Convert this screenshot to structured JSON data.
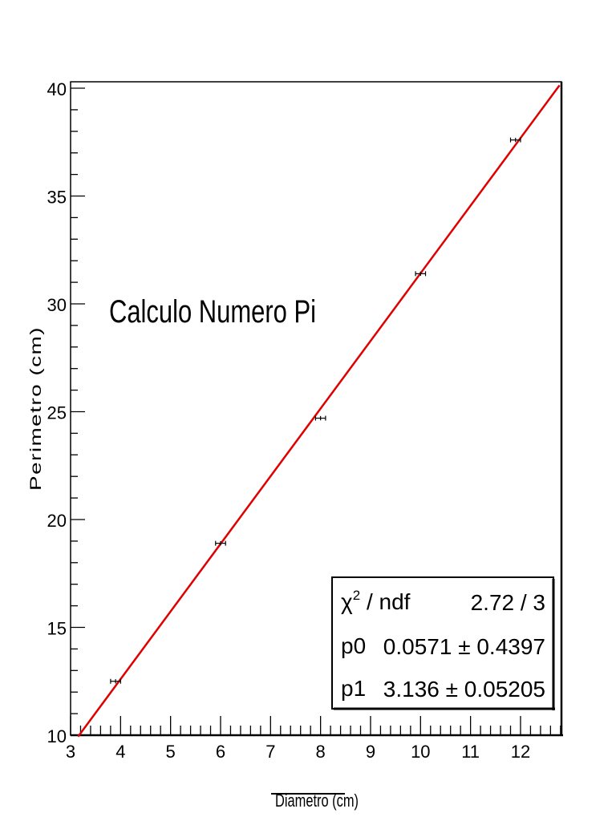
{
  "chart_data": {
    "type": "scatter",
    "title": "Calculo Numero Pi",
    "xlabel": "Diametro (cm)",
    "ylabel": "Perimetro  (cm)",
    "xlim": [
      3,
      12.8
    ],
    "ylim": [
      10,
      40
    ],
    "x_ticks": [
      3,
      4,
      5,
      6,
      7,
      8,
      9,
      10,
      11,
      12
    ],
    "y_ticks": [
      10,
      15,
      20,
      25,
      30,
      35,
      40
    ],
    "grid": false,
    "series": [
      {
        "name": "data",
        "x": [
          3.9,
          6.0,
          8.0,
          10.0,
          11.9
        ],
        "y": [
          12.5,
          18.9,
          24.7,
          31.4,
          37.6
        ],
        "x_err": [
          0.1,
          0.1,
          0.1,
          0.1,
          0.1
        ],
        "y_err": [
          0.1,
          0.1,
          0.1,
          0.1,
          0.1
        ],
        "color": "#000000"
      },
      {
        "name": "linear fit",
        "type": "line",
        "p0": 0.0571,
        "p1": 3.136,
        "color": "#e00000"
      }
    ],
    "stats_box": {
      "rows": [
        {
          "label": "χ² / ndf",
          "value": "2.72 / 3"
        },
        {
          "label": "p0",
          "value": "0.0571 ± 0.4397"
        },
        {
          "label": "p1",
          "value": "3.136 ± 0.05205"
        }
      ]
    }
  },
  "labels": {
    "title": "Calculo Numero Pi",
    "xlabel": "Diametro (cm)",
    "ylabel": "Perimetro  (cm)",
    "chi2_label_base": "χ",
    "chi2_label_sup": "2",
    "chi2_label_rest": " / ndf",
    "chi2_value": "2.72 / 3",
    "p0_label": "p0",
    "p0_value": "0.0571 ± 0.4397",
    "p1_label": "p1",
    "p1_value": "3.136 ± 0.05205"
  },
  "colors": {
    "fit_line": "#e00000",
    "axis": "#000000"
  }
}
